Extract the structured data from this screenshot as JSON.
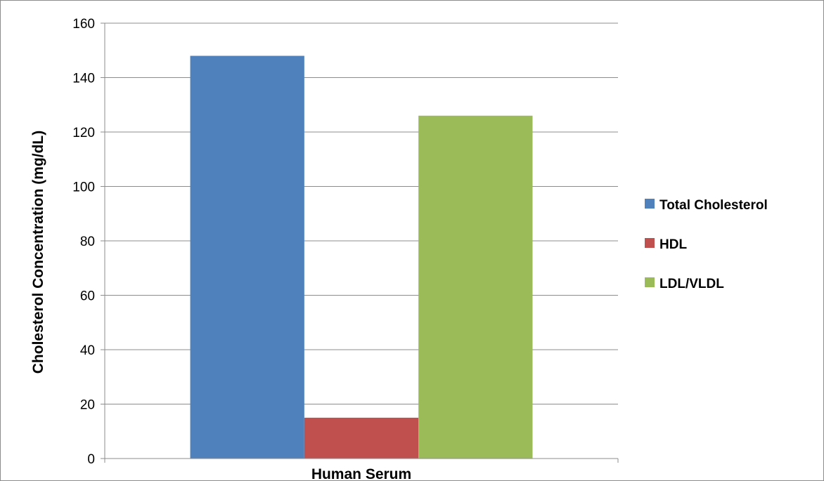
{
  "chart_data": {
    "type": "bar",
    "title": "",
    "xlabel": "Human Serum",
    "ylabel": "Cholesterol Concentration (mg/dL)",
    "categories": [
      "Human Serum"
    ],
    "ylim": [
      0,
      160
    ],
    "yticks": [
      0,
      20,
      40,
      60,
      80,
      100,
      120,
      140,
      160
    ],
    "grid": true,
    "legend_position": "right",
    "series": [
      {
        "name": "Total Cholesterol",
        "values": [
          148
        ],
        "color": "#4F81BD"
      },
      {
        "name": "HDL",
        "values": [
          15
        ],
        "color": "#C0504D"
      },
      {
        "name": "LDL/VLDL",
        "values": [
          126
        ],
        "color": "#9BBB59"
      }
    ]
  }
}
